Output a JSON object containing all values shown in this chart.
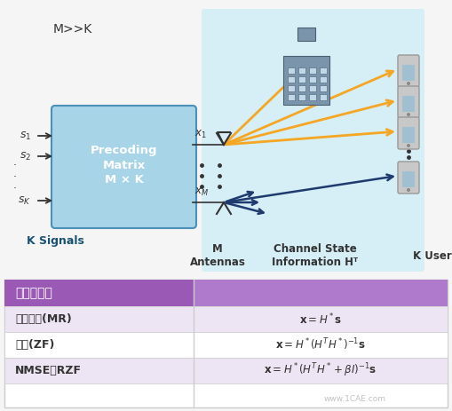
{
  "bg_color": "#f5f5f5",
  "light_blue_bg": "#d6eef5",
  "purple_header": "#9b59b6",
  "purple_header_right": "#b07acc",
  "row_alt": "#ede5f3",
  "row_white": "#ffffff",
  "box_fill": "#a8d4e8",
  "box_stroke": "#4a90b8",
  "orange_arrow": "#f5a623",
  "dark_blue_arrow": "#1e3a6e",
  "text_dark": "#333333",
  "text_blue_bold": "#1a5276",
  "phone_body": "#c8c8c8",
  "phone_screen": "#a0bfd0",
  "building_body": "#7a95ab",
  "building_win": "#c0d8e8",
  "building_dark": "#4a6070",
  "title_text": "M>>K",
  "box_label_line1": "Precoding",
  "box_label_line2": "Matrix",
  "box_label_line3": "M × K",
  "signals_label": "K Signals",
  "antennas_label": "M\nAntennas",
  "channel_label": "Channel State\nInformation Hᵀ",
  "users_label": "K Users",
  "table_header": "预编码类型",
  "row1_label": "最大比率(MR)",
  "row2_label": "迫零(ZF)",
  "row3_label": "NMSE或RZF",
  "watermark": "www.1CAE.com"
}
